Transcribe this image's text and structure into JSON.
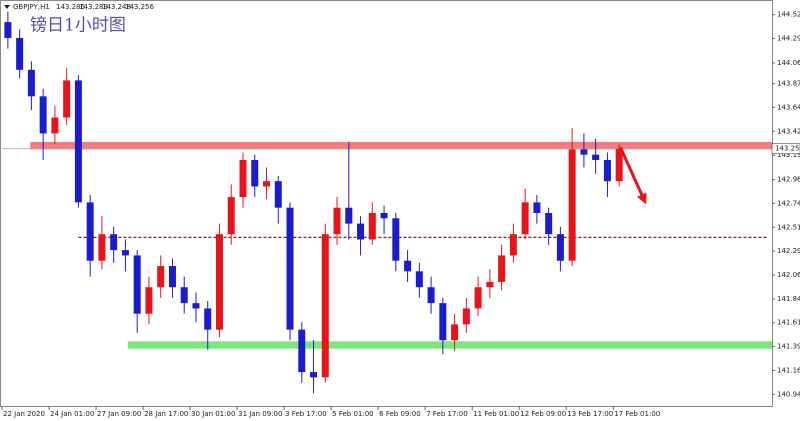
{
  "chart_data": {
    "type": "candlestick",
    "title": "镑日1小时图",
    "symbol": "GBPJPY,H1",
    "quote": [
      143.286,
      143.289,
      143.248,
      143.256
    ],
    "up_color": "#e8141b",
    "down_color": "#1c1ccf",
    "ohlc": [
      [
        144.45,
        144.55,
        144.2,
        144.3
      ],
      [
        144.3,
        144.38,
        143.92,
        144.0
      ],
      [
        144.0,
        144.08,
        143.62,
        143.75
      ],
      [
        143.75,
        143.82,
        143.15,
        143.4
      ],
      [
        143.4,
        143.66,
        143.3,
        143.55
      ],
      [
        143.55,
        144.02,
        143.48,
        143.9
      ],
      [
        143.9,
        143.95,
        142.7,
        142.75
      ],
      [
        142.75,
        142.82,
        142.05,
        142.2
      ],
      [
        142.2,
        142.62,
        142.12,
        142.45
      ],
      [
        142.45,
        142.52,
        142.18,
        142.3
      ],
      [
        142.3,
        142.4,
        142.1,
        142.25
      ],
      [
        142.25,
        142.3,
        141.52,
        141.7
      ],
      [
        141.7,
        142.05,
        141.6,
        141.95
      ],
      [
        141.95,
        142.25,
        141.85,
        142.15
      ],
      [
        142.15,
        142.22,
        141.85,
        141.95
      ],
      [
        141.95,
        142.05,
        141.7,
        141.8
      ],
      [
        141.8,
        141.9,
        141.62,
        141.75
      ],
      [
        141.75,
        141.82,
        141.36,
        141.55
      ],
      [
        141.55,
        142.55,
        141.48,
        142.45
      ],
      [
        142.45,
        142.92,
        142.35,
        142.8
      ],
      [
        142.8,
        143.22,
        142.7,
        143.15
      ],
      [
        143.15,
        143.2,
        142.8,
        142.9
      ],
      [
        142.9,
        143.08,
        142.78,
        142.95
      ],
      [
        142.95,
        143.0,
        142.55,
        142.7
      ],
      [
        142.7,
        142.75,
        141.45,
        141.55
      ],
      [
        141.55,
        141.62,
        141.05,
        141.15
      ],
      [
        141.15,
        141.45,
        140.95,
        141.1
      ],
      [
        141.1,
        142.55,
        141.05,
        142.45
      ],
      [
        142.45,
        142.8,
        142.35,
        142.7
      ],
      [
        142.7,
        143.32,
        142.4,
        142.55
      ],
      [
        142.55,
        142.62,
        142.25,
        142.4
      ],
      [
        142.4,
        142.75,
        142.35,
        142.65
      ],
      [
        142.65,
        142.72,
        142.45,
        142.6
      ],
      [
        142.6,
        142.65,
        142.1,
        142.2
      ],
      [
        142.2,
        142.3,
        142.0,
        142.1
      ],
      [
        142.1,
        142.18,
        141.85,
        141.95
      ],
      [
        141.95,
        142.05,
        141.7,
        141.8
      ],
      [
        141.8,
        141.85,
        141.32,
        141.45
      ],
      [
        141.45,
        141.7,
        141.35,
        141.6
      ],
      [
        141.6,
        141.85,
        141.52,
        141.75
      ],
      [
        141.75,
        142.05,
        141.68,
        141.95
      ],
      [
        141.95,
        142.12,
        141.85,
        142.0
      ],
      [
        142.0,
        142.35,
        141.92,
        142.25
      ],
      [
        142.25,
        142.55,
        142.18,
        142.45
      ],
      [
        142.45,
        142.88,
        142.4,
        142.75
      ],
      [
        142.75,
        142.82,
        142.55,
        142.65
      ],
      [
        142.65,
        142.7,
        142.35,
        142.45
      ],
      [
        142.45,
        142.52,
        142.1,
        142.2
      ],
      [
        142.2,
        143.45,
        142.15,
        143.25
      ],
      [
        143.25,
        143.4,
        143.08,
        143.2
      ],
      [
        143.2,
        143.35,
        143.02,
        143.15
      ],
      [
        143.15,
        143.22,
        142.8,
        142.95
      ],
      [
        142.95,
        143.3,
        142.9,
        143.256
      ]
    ],
    "xlim": [
      0,
      65.5
    ],
    "xticks": [
      {
        "value": 0,
        "label": "22 Jan 2020"
      },
      {
        "value": 4,
        "label": "24 Jan 01:00"
      },
      {
        "value": 8,
        "label": "27 Jan 09:00"
      },
      {
        "value": 12,
        "label": "28 Jan 17:00"
      },
      {
        "value": 16,
        "label": "30 Jan 01:00"
      },
      {
        "value": 20,
        "label": "31 Jan 09:00"
      },
      {
        "value": 24,
        "label": "3 Feb 17:00"
      },
      {
        "value": 28,
        "label": "5 Feb 01:00"
      },
      {
        "value": 32,
        "label": "6 Feb 09:00"
      },
      {
        "value": 36,
        "label": "7 Feb 17:00"
      },
      {
        "value": 40,
        "label": "11 Feb 01:00"
      },
      {
        "value": 44,
        "label": "12 Feb 09:00"
      },
      {
        "value": 48,
        "label": "13 Feb 17:00"
      },
      {
        "value": 52,
        "label": "17 Feb 01:00"
      }
    ],
    "ylim": [
      140.83,
      144.63
    ],
    "yticks": [
      {
        "value": 144.52,
        "label": "144.520"
      },
      144.295,
      144.065,
      {
        "value": 143.87,
        "label": "143.870"
      },
      143.645,
      {
        "value": 143.42,
        "label": "143.420"
      },
      143.195,
      142.965,
      {
        "value": 142.74,
        "label": "142.740"
      },
      142.515,
      {
        "value": 142.29,
        "label": "142.290"
      },
      142.065,
      {
        "value": 141.84,
        "label": "141.840"
      },
      141.615,
      {
        "value": 141.39,
        "label": "141.390"
      },
      141.165,
      {
        "value": 140.94,
        "label": "140.940"
      }
    ],
    "resistance": {
      "ylim": [
        143.25,
        143.32
      ],
      "start": 2.4,
      "color": "#f47b7b"
    },
    "support": {
      "ylim": [
        141.37,
        141.44
      ],
      "start": 10.7,
      "color": "#7fe67f"
    },
    "midline": {
      "value": 142.42,
      "start": 6.5,
      "color": "#8b1a1a"
    },
    "arrow": {
      "x": [
        52.6,
        54.8
      ],
      "y": [
        143.27,
        142.73
      ],
      "color": "#e8141b"
    }
  }
}
